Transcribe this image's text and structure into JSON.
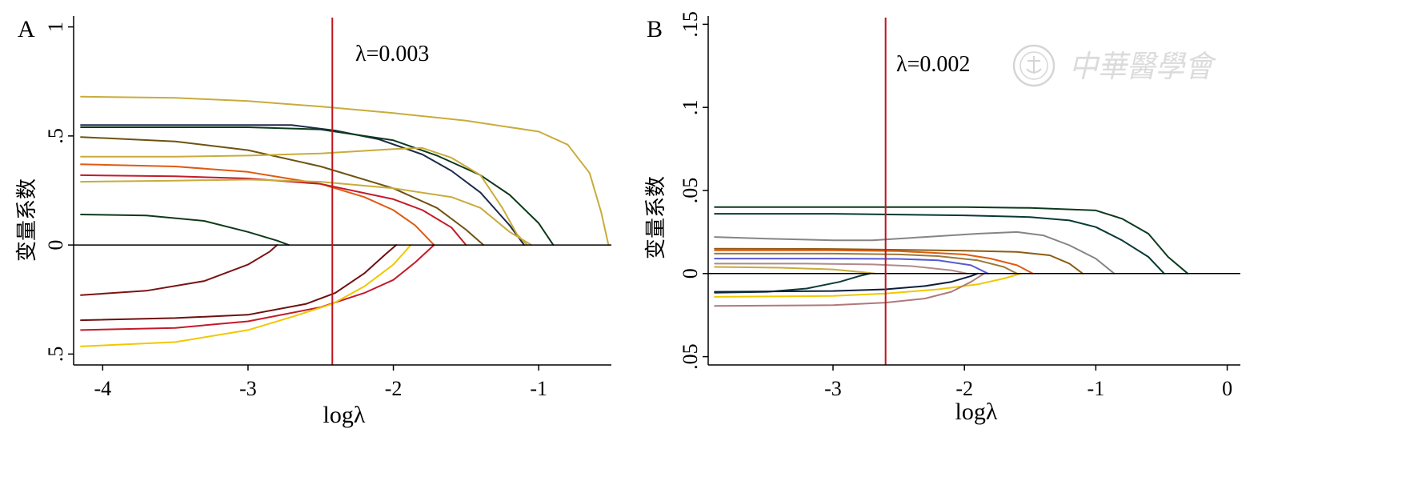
{
  "panels": [
    {
      "letter": "A",
      "annotation": "λ=0.003",
      "xlabel": "logλ",
      "ylabel": "变量系数",
      "xlim": [
        -4.2,
        -0.5
      ],
      "ylim": [
        -0.55,
        1.05
      ],
      "xticks": [
        -4,
        -3,
        -2,
        -1
      ],
      "xtick_labels": [
        "-4",
        "-3",
        "-2",
        "-1"
      ],
      "yticks": [
        -0.5,
        0,
        0.5,
        1
      ],
      "ytick_labels": [
        ".5",
        "0",
        ".5",
        "1"
      ],
      "vline_x": -2.42,
      "vline_color": "#c0141c"
    },
    {
      "letter": "B",
      "annotation": "λ=0.002",
      "xlabel": "logλ",
      "ylabel": "变量系数",
      "xlim": [
        -3.95,
        0.1
      ],
      "ylim": [
        -0.055,
        0.155
      ],
      "xticks": [
        -3,
        -2,
        -1,
        0
      ],
      "xtick_labels": [
        "-3",
        "-2",
        "-1",
        "0"
      ],
      "yticks": [
        -0.05,
        0,
        0.05,
        0.1,
        0.15
      ],
      "ytick_labels": [
        ".05",
        "0",
        ".05",
        ".1",
        ".15"
      ],
      "vline_x": -2.6,
      "vline_color": "#c0141c"
    }
  ],
  "chart_data": [
    {
      "type": "line",
      "panel": "A",
      "xlabel": "logλ",
      "ylabel": "变量系数",
      "xlim": [
        -4.2,
        -0.5
      ],
      "ylim": [
        -0.55,
        1.05
      ],
      "grid": false,
      "series": [
        {
          "color": "#c8ac3c",
          "points": [
            [
              -4.15,
              0.68
            ],
            [
              -3.5,
              0.675
            ],
            [
              -3.0,
              0.66
            ],
            [
              -2.5,
              0.635
            ],
            [
              -2.0,
              0.605
            ],
            [
              -1.5,
              0.57
            ],
            [
              -1.0,
              0.52
            ],
            [
              -0.8,
              0.46
            ],
            [
              -0.65,
              0.33
            ],
            [
              -0.57,
              0.15
            ],
            [
              -0.52,
              0.0
            ]
          ]
        },
        {
          "color": "#1e2a4a",
          "points": [
            [
              -4.15,
              0.55
            ],
            [
              -3.5,
              0.55
            ],
            [
              -3.0,
              0.55
            ],
            [
              -2.7,
              0.55
            ],
            [
              -2.4,
              0.525
            ],
            [
              -2.1,
              0.485
            ],
            [
              -1.8,
              0.415
            ],
            [
              -1.6,
              0.34
            ],
            [
              -1.4,
              0.24
            ],
            [
              -1.2,
              0.09
            ],
            [
              -1.1,
              0.0
            ]
          ]
        },
        {
          "color": "#0c3a1c",
          "points": [
            [
              -4.15,
              0.54
            ],
            [
              -3.5,
              0.54
            ],
            [
              -3.0,
              0.54
            ],
            [
              -2.5,
              0.53
            ],
            [
              -2.0,
              0.48
            ],
            [
              -1.7,
              0.41
            ],
            [
              -1.4,
              0.32
            ],
            [
              -1.2,
              0.23
            ],
            [
              -1.0,
              0.1
            ],
            [
              -0.9,
              0.0
            ]
          ]
        },
        {
          "color": "#6e5210",
          "points": [
            [
              -4.15,
              0.495
            ],
            [
              -3.5,
              0.475
            ],
            [
              -3.0,
              0.435
            ],
            [
              -2.5,
              0.36
            ],
            [
              -2.0,
              0.26
            ],
            [
              -1.7,
              0.17
            ],
            [
              -1.5,
              0.07
            ],
            [
              -1.38,
              0.0
            ]
          ]
        },
        {
          "color": "#c8ac3c",
          "points": [
            [
              -4.15,
              0.405
            ],
            [
              -3.5,
              0.405
            ],
            [
              -3.0,
              0.41
            ],
            [
              -2.5,
              0.42
            ],
            [
              -2.0,
              0.44
            ],
            [
              -1.8,
              0.445
            ],
            [
              -1.6,
              0.4
            ],
            [
              -1.4,
              0.32
            ],
            [
              -1.25,
              0.17
            ],
            [
              -1.15,
              0.05
            ],
            [
              -1.08,
              0.0
            ]
          ]
        },
        {
          "color": "#e05a10",
          "points": [
            [
              -4.15,
              0.37
            ],
            [
              -3.5,
              0.36
            ],
            [
              -3.0,
              0.335
            ],
            [
              -2.5,
              0.28
            ],
            [
              -2.2,
              0.22
            ],
            [
              -2.0,
              0.16
            ],
            [
              -1.85,
              0.09
            ],
            [
              -1.72,
              0.0
            ]
          ]
        },
        {
          "color": "#c41a2a",
          "points": [
            [
              -4.15,
              0.32
            ],
            [
              -3.5,
              0.315
            ],
            [
              -3.0,
              0.305
            ],
            [
              -2.5,
              0.28
            ],
            [
              -2.0,
              0.21
            ],
            [
              -1.8,
              0.16
            ],
            [
              -1.6,
              0.08
            ],
            [
              -1.5,
              0.0
            ]
          ]
        },
        {
          "color": "#c8ac3c",
          "points": [
            [
              -4.15,
              0.29
            ],
            [
              -3.5,
              0.295
            ],
            [
              -3.0,
              0.3
            ],
            [
              -2.5,
              0.29
            ],
            [
              -2.0,
              0.26
            ],
            [
              -1.6,
              0.22
            ],
            [
              -1.4,
              0.17
            ],
            [
              -1.2,
              0.06
            ],
            [
              -1.05,
              0.0
            ]
          ]
        },
        {
          "color": "#0e3a1a",
          "points": [
            [
              -4.15,
              0.14
            ],
            [
              -3.7,
              0.135
            ],
            [
              -3.3,
              0.11
            ],
            [
              -3.0,
              0.06
            ],
            [
              -2.8,
              0.02
            ],
            [
              -2.72,
              0.0
            ]
          ]
        },
        {
          "color": "#7a1414",
          "points": [
            [
              -4.15,
              -0.23
            ],
            [
              -3.7,
              -0.21
            ],
            [
              -3.3,
              -0.165
            ],
            [
              -3.0,
              -0.09
            ],
            [
              -2.85,
              -0.03
            ],
            [
              -2.8,
              0.0
            ]
          ]
        },
        {
          "color": "#6e1010",
          "points": [
            [
              -4.15,
              -0.345
            ],
            [
              -3.5,
              -0.335
            ],
            [
              -3.0,
              -0.32
            ],
            [
              -2.6,
              -0.27
            ],
            [
              -2.4,
              -0.22
            ],
            [
              -2.2,
              -0.13
            ],
            [
              -2.05,
              -0.04
            ],
            [
              -1.98,
              0.0
            ]
          ]
        },
        {
          "color": "#c41a2a",
          "points": [
            [
              -4.15,
              -0.39
            ],
            [
              -3.5,
              -0.38
            ],
            [
              -3.0,
              -0.35
            ],
            [
              -2.5,
              -0.285
            ],
            [
              -2.2,
              -0.22
            ],
            [
              -2.0,
              -0.16
            ],
            [
              -1.85,
              -0.08
            ],
            [
              -1.72,
              0.0
            ]
          ]
        },
        {
          "color": "#f0c800",
          "points": [
            [
              -4.15,
              -0.465
            ],
            [
              -3.5,
              -0.445
            ],
            [
              -3.0,
              -0.39
            ],
            [
              -2.7,
              -0.33
            ],
            [
              -2.42,
              -0.27
            ],
            [
              -2.2,
              -0.19
            ],
            [
              -2.0,
              -0.09
            ],
            [
              -1.88,
              0.0
            ]
          ]
        }
      ]
    },
    {
      "type": "line",
      "panel": "B",
      "xlabel": "logλ",
      "ylabel": "变量系数",
      "xlim": [
        -3.95,
        0.1
      ],
      "ylim": [
        -0.055,
        0.155
      ],
      "grid": false,
      "series": [
        {
          "color": "#0c3a1c",
          "points": [
            [
              -3.9,
              0.04
            ],
            [
              -3.5,
              0.04
            ],
            [
              -3.0,
              0.04
            ],
            [
              -2.5,
              0.04
            ],
            [
              -2.0,
              0.04
            ],
            [
              -1.5,
              0.0395
            ],
            [
              -1.0,
              0.038
            ],
            [
              -0.8,
              0.033
            ],
            [
              -0.6,
              0.024
            ],
            [
              -0.45,
              0.01
            ],
            [
              -0.3,
              0.0
            ]
          ]
        },
        {
          "color": "#063a34",
          "points": [
            [
              -3.9,
              0.036
            ],
            [
              -3.0,
              0.036
            ],
            [
              -2.5,
              0.0355
            ],
            [
              -2.0,
              0.035
            ],
            [
              -1.5,
              0.034
            ],
            [
              -1.2,
              0.032
            ],
            [
              -1.0,
              0.028
            ],
            [
              -0.8,
              0.02
            ],
            [
              -0.6,
              0.01
            ],
            [
              -0.48,
              0.0
            ]
          ]
        },
        {
          "color": "#858585",
          "points": [
            [
              -3.9,
              0.022
            ],
            [
              -3.5,
              0.021
            ],
            [
              -3.0,
              0.02
            ],
            [
              -2.7,
              0.02
            ],
            [
              -2.3,
              0.022
            ],
            [
              -1.9,
              0.024
            ],
            [
              -1.6,
              0.025
            ],
            [
              -1.4,
              0.023
            ],
            [
              -1.2,
              0.017
            ],
            [
              -1.0,
              0.009
            ],
            [
              -0.86,
              0.0
            ]
          ]
        },
        {
          "color": "#8a5e14",
          "points": [
            [
              -3.9,
              0.015
            ],
            [
              -3.0,
              0.0148
            ],
            [
              -2.5,
              0.0143
            ],
            [
              -2.0,
              0.0138
            ],
            [
              -1.6,
              0.013
            ],
            [
              -1.35,
              0.011
            ],
            [
              -1.2,
              0.006
            ],
            [
              -1.1,
              0.0
            ]
          ]
        },
        {
          "color": "#e05a10",
          "points": [
            [
              -3.9,
              0.014
            ],
            [
              -3.0,
              0.014
            ],
            [
              -2.5,
              0.0135
            ],
            [
              -2.0,
              0.0115
            ],
            [
              -1.8,
              0.009
            ],
            [
              -1.6,
              0.005
            ],
            [
              -1.48,
              0.0
            ]
          ]
        },
        {
          "color": "#9a7a3a",
          "points": [
            [
              -3.9,
              0.012
            ],
            [
              -3.0,
              0.012
            ],
            [
              -2.5,
              0.0115
            ],
            [
              -2.2,
              0.0105
            ],
            [
              -1.9,
              0.008
            ],
            [
              -1.7,
              0.004
            ],
            [
              -1.6,
              0.0
            ]
          ]
        },
        {
          "color": "#5a5ad0",
          "points": [
            [
              -3.9,
              0.009
            ],
            [
              -3.0,
              0.009
            ],
            [
              -2.5,
              0.0088
            ],
            [
              -2.2,
              0.008
            ],
            [
              -1.95,
              0.005
            ],
            [
              -1.82,
              0.0
            ]
          ]
        },
        {
          "color": "#b08a8a",
          "points": [
            [
              -3.9,
              0.006
            ],
            [
              -3.2,
              0.006
            ],
            [
              -2.7,
              0.0055
            ],
            [
              -2.4,
              0.0045
            ],
            [
              -2.1,
              0.002
            ],
            [
              -1.98,
              0.0
            ]
          ]
        },
        {
          "color": "#c8ac3c",
          "points": [
            [
              -3.9,
              0.004
            ],
            [
              -3.4,
              0.0035
            ],
            [
              -3.0,
              0.0025
            ],
            [
              -2.8,
              0.001
            ],
            [
              -2.68,
              0.0
            ]
          ]
        },
        {
          "color": "#0e3a3a",
          "points": [
            [
              -3.9,
              -0.0115
            ],
            [
              -3.5,
              -0.011
            ],
            [
              -3.2,
              -0.009
            ],
            [
              -2.95,
              -0.005
            ],
            [
              -2.8,
              -0.0015
            ],
            [
              -2.72,
              0.0
            ]
          ]
        },
        {
          "color": "#0c1e3c",
          "points": [
            [
              -3.9,
              -0.011
            ],
            [
              -3.0,
              -0.0105
            ],
            [
              -2.6,
              -0.0095
            ],
            [
              -2.3,
              -0.0075
            ],
            [
              -2.1,
              -0.005
            ],
            [
              -1.95,
              -0.0015
            ],
            [
              -1.9,
              0.0
            ]
          ]
        },
        {
          "color": "#f0c800",
          "points": [
            [
              -3.9,
              -0.014
            ],
            [
              -3.0,
              -0.0135
            ],
            [
              -2.6,
              -0.012
            ],
            [
              -2.2,
              -0.0095
            ],
            [
              -1.9,
              -0.0065
            ],
            [
              -1.7,
              -0.003
            ],
            [
              -1.57,
              0.0
            ]
          ]
        },
        {
          "color": "#b07a7a",
          "points": [
            [
              -3.9,
              -0.0195
            ],
            [
              -3.0,
              -0.019
            ],
            [
              -2.6,
              -0.0175
            ],
            [
              -2.3,
              -0.015
            ],
            [
              -2.1,
              -0.011
            ],
            [
              -1.95,
              -0.005
            ],
            [
              -1.85,
              0.0
            ]
          ]
        }
      ]
    }
  ],
  "watermark": {
    "text": "中華醫學會",
    "icon": "seal-emblem-icon",
    "color": "#9a9a9a"
  }
}
